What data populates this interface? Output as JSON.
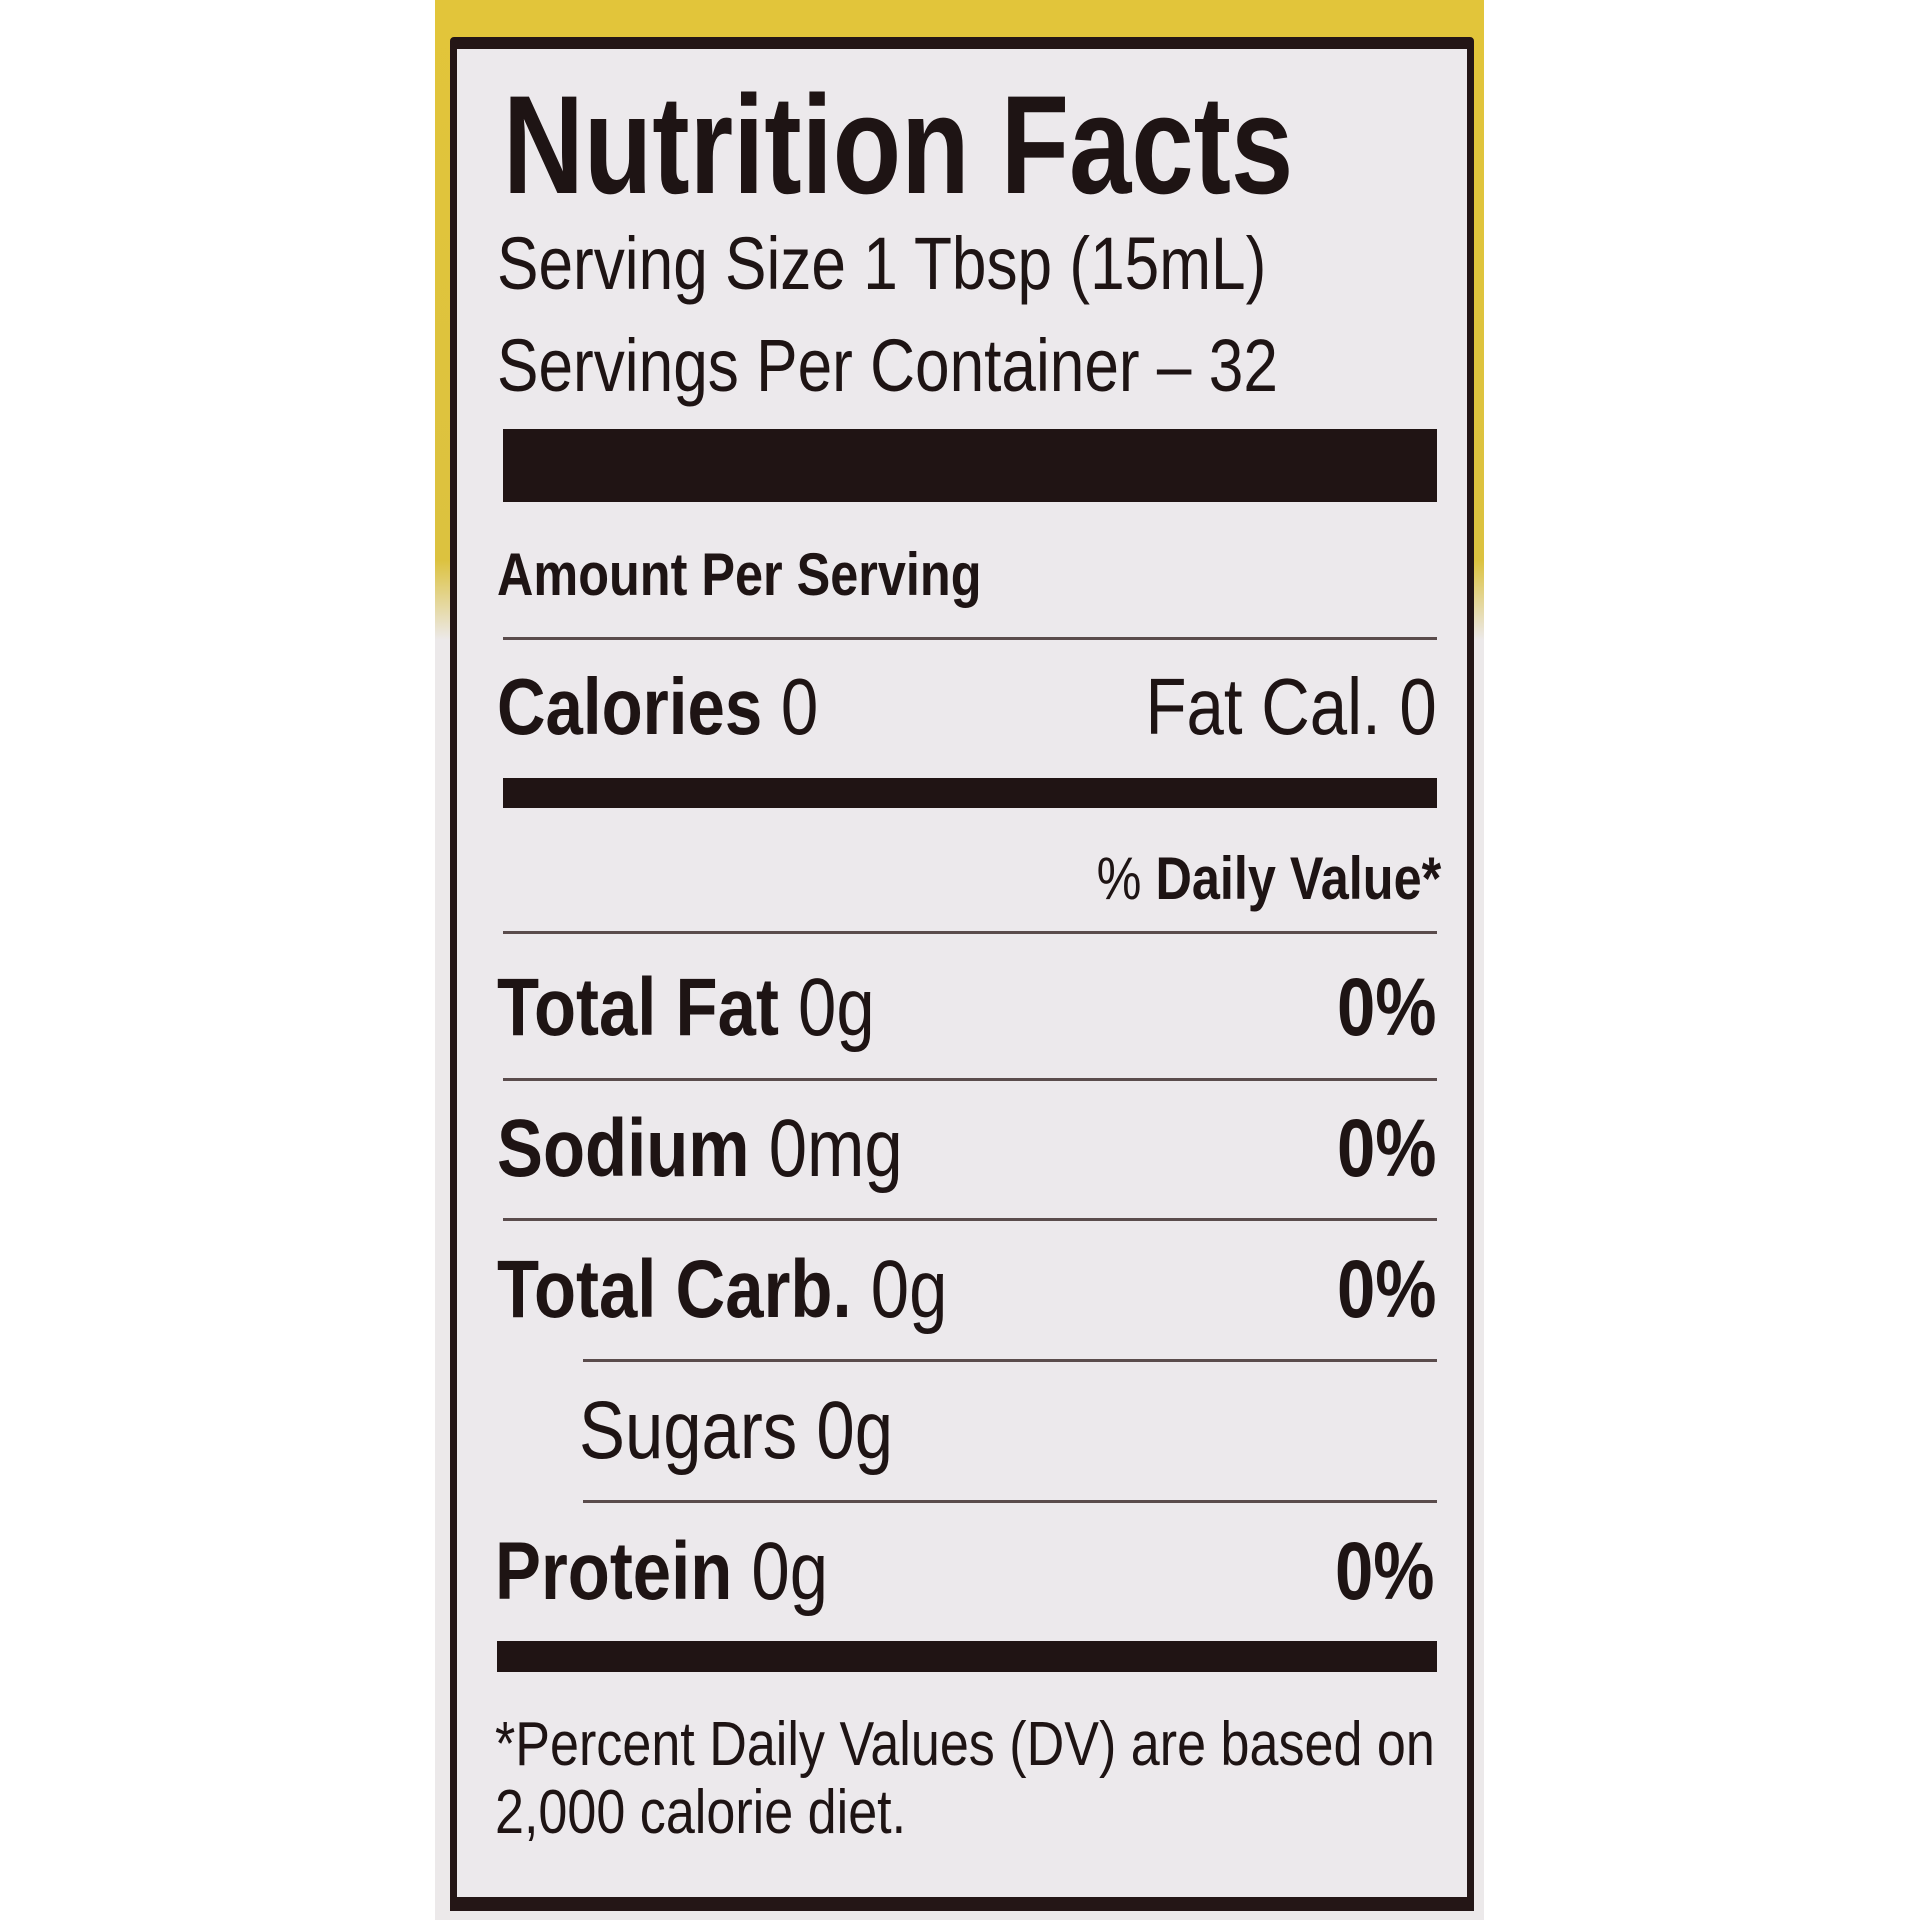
{
  "title": "Nutrition Facts",
  "serving_size": "Serving Size 1 Tbsp (15mL)",
  "servings_per_container": "Servings Per Container – 32",
  "amount_per_serving": "Amount Per Serving",
  "calories": {
    "label": "Calories",
    "value": "0",
    "fat_cal": "Fat Cal. 0"
  },
  "daily_value_header": {
    "prefix": "%",
    "label": "Daily Value*"
  },
  "nutrients": [
    {
      "label": "Total Fat",
      "amount": "0g",
      "dv": "0%"
    },
    {
      "label": "Sodium",
      "amount": "0mg",
      "dv": "0%"
    },
    {
      "label": "Total Carb.",
      "amount": "0g",
      "dv": "0%"
    },
    {
      "label": "Sugars",
      "amount": "0g"
    },
    {
      "label": "Protein",
      "amount": "0g",
      "dv": "0%"
    }
  ],
  "footnote": {
    "line1": "*Percent Daily Values (DV) are based on",
    "line2": "2,000 calorie diet."
  },
  "colors": {
    "bottle": "#dcc23f",
    "label": "#ece9ec",
    "ink": "#201414"
  }
}
